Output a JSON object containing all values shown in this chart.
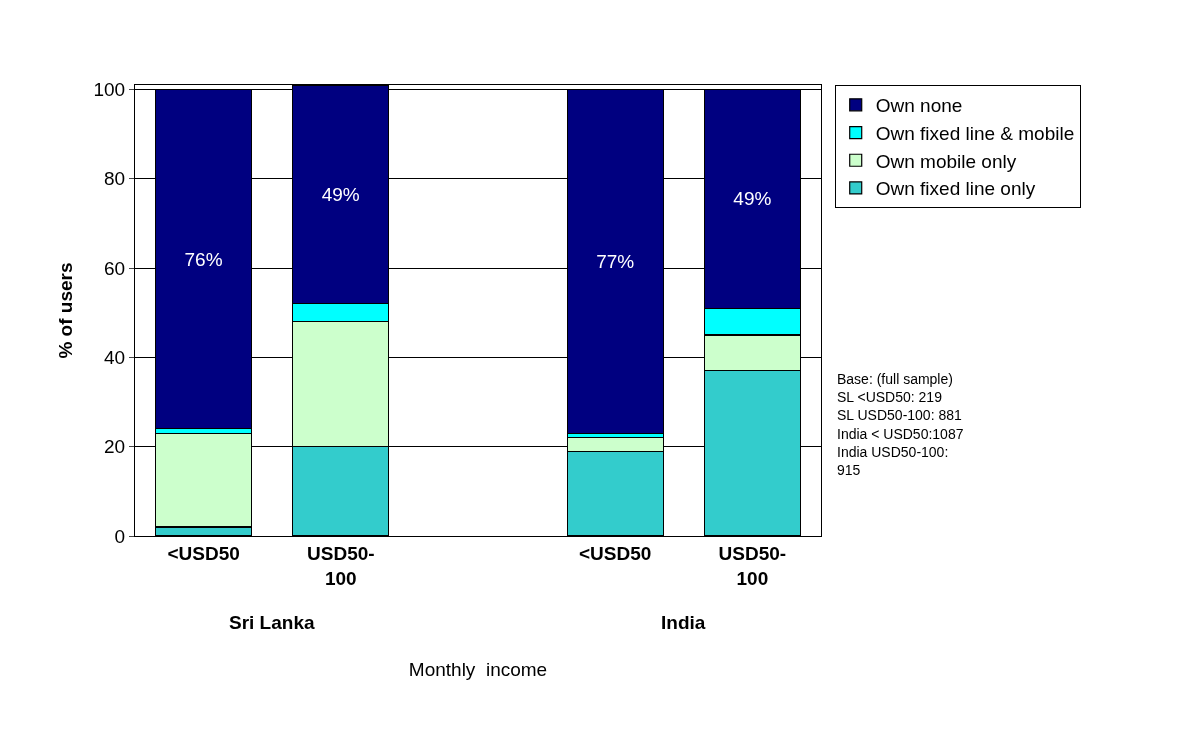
{
  "chart_data": {
    "type": "bar",
    "stacked": true,
    "xlabel": "Monthly  income",
    "ylabel": "% of users",
    "categories": [
      "<USD50",
      "USD50-100",
      null,
      "<USD50",
      "USD50-100"
    ],
    "series": [
      {
        "name": "Own fixed line only",
        "color": "#33cccc",
        "values": [
          2,
          20,
          null,
          19,
          37
        ]
      },
      {
        "name": "Own mobile only",
        "color": "#ccffcc",
        "values": [
          21,
          28,
          null,
          3,
          8
        ]
      },
      {
        "name": "Own fixed line & mobile",
        "color": "#00ffff",
        "values": [
          1,
          4,
          null,
          1,
          6
        ]
      },
      {
        "name": "Own none",
        "color": "#000080",
        "values": [
          76,
          49,
          null,
          77,
          49
        ],
        "value_labels": [
          "76%",
          "49%",
          null,
          "77%",
          "49%"
        ]
      }
    ],
    "ylim": [
      0,
      101
    ],
    "yticks": [
      0,
      20,
      40,
      60,
      80,
      100
    ],
    "grid": "y",
    "legend": "right",
    "annotations": [
      "Sri Lanka",
      "India",
      "Base: (full sample)\nSL <USD50: 219\nSL USD50-100: 881\nIndia < USD50:1087\nIndia USD50-100:\n915"
    ]
  }
}
